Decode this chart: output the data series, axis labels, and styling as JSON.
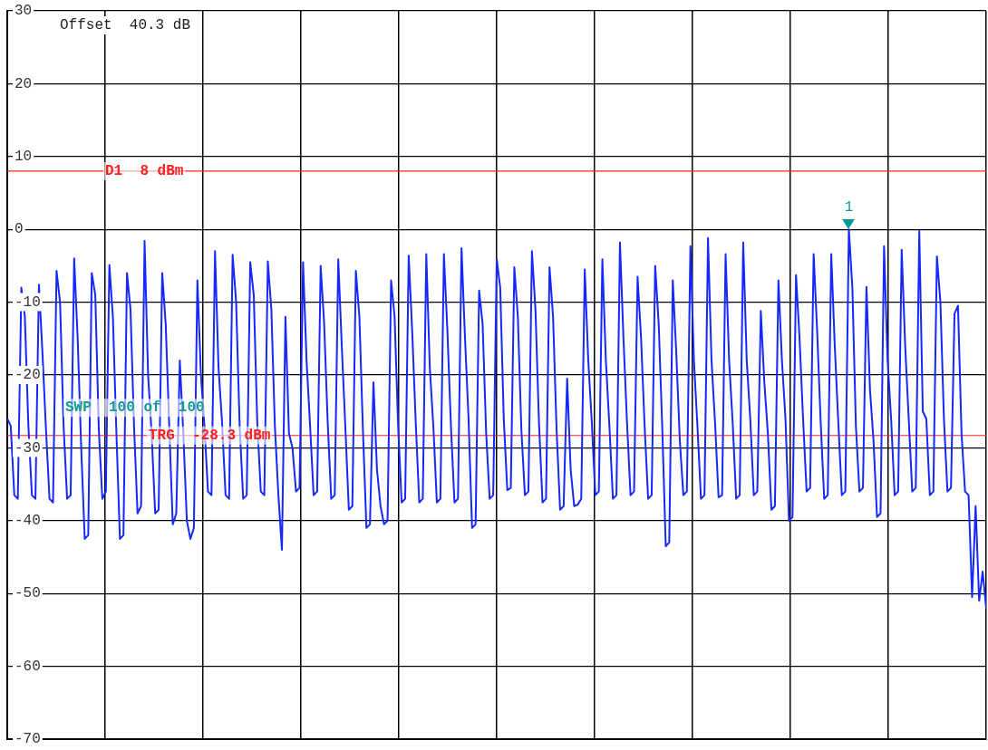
{
  "chart_data": {
    "type": "line",
    "annotations": [
      "Offset  40.3 dB",
      "SWP  100 of  100",
      {
        "text": "1",
        "y": 0
      }
    ],
    "categories": [
      null,
      null,
      null,
      null,
      null,
      null,
      null,
      null,
      null,
      null,
      null,
      null,
      null,
      null,
      null,
      null,
      null,
      null,
      null,
      null,
      null,
      null,
      null,
      null,
      null,
      null,
      null,
      null,
      null,
      null,
      null,
      null,
      null,
      null,
      null,
      null,
      null,
      null,
      null,
      null,
      null,
      null,
      null,
      null,
      null,
      null,
      null,
      null,
      null,
      null,
      null,
      null,
      null,
      null,
      null,
      null,
      null,
      null,
      null,
      null,
      null,
      null,
      null,
      null,
      null,
      null,
      null,
      null,
      null,
      null,
      null,
      null,
      null,
      null,
      null,
      null,
      null,
      null,
      null,
      null,
      null,
      null,
      null,
      null,
      null,
      null,
      null,
      null,
      null,
      null,
      null,
      null,
      null,
      null,
      null,
      null,
      null,
      null,
      null,
      null,
      null,
      null,
      null,
      null,
      null,
      null,
      null,
      null,
      null,
      null,
      null,
      null,
      null,
      null,
      null,
      null,
      null,
      null,
      null,
      null,
      null,
      null,
      null,
      null,
      null,
      null,
      null,
      null,
      null,
      null,
      null,
      null,
      null,
      null,
      null,
      null,
      null,
      null,
      null,
      null,
      null,
      null,
      null,
      null,
      null,
      null,
      null,
      null,
      null,
      null,
      null,
      null,
      null,
      null,
      null,
      null,
      null,
      null,
      null,
      null,
      null,
      null,
      null,
      null,
      null,
      null,
      null,
      null,
      null,
      null,
      null,
      null,
      null,
      null,
      null,
      null,
      null,
      null,
      null,
      null,
      null,
      null,
      null,
      null,
      null,
      null,
      null,
      null,
      null,
      null,
      null,
      null,
      null,
      null,
      null,
      null,
      null,
      null,
      null,
      null,
      null,
      null,
      null,
      null,
      null,
      null,
      null,
      null,
      null,
      null,
      null,
      null,
      null,
      null,
      null,
      null,
      null,
      null,
      null,
      null,
      null,
      null,
      null,
      null,
      null,
      null,
      null,
      null,
      null,
      null,
      null,
      null,
      null,
      null,
      null,
      null,
      null,
      null,
      null,
      null,
      null,
      null,
      null,
      null,
      null,
      null,
      null,
      null,
      null,
      null,
      null,
      null,
      null,
      null,
      null,
      null,
      null,
      null,
      null,
      null,
      null,
      null,
      null,
      null,
      null,
      null,
      null,
      null,
      null,
      null,
      null,
      null,
      null,
      null,
      null,
      null,
      null,
      null,
      null
    ],
    "series": [
      {
        "color": "#1428ff",
        "values": [
          -26,
          -27,
          -36.5,
          -37,
          -8,
          -12,
          -27,
          -36.5,
          -37,
          -7.6,
          -17,
          -27.5,
          -37,
          -37.5,
          -5.7,
          -10,
          -27,
          -37,
          -36.5,
          -4,
          -15,
          -30,
          -42.5,
          -42,
          -6,
          -9,
          -27.5,
          -37,
          -36,
          -4.9,
          -12,
          -28,
          -42.5,
          -42,
          -6,
          -11,
          -27,
          -39,
          -38,
          -1.6,
          -20,
          -28,
          -39,
          -38.5,
          -6,
          -13,
          -27,
          -40.5,
          -39,
          -18,
          -28,
          -40,
          -42.5,
          -41,
          -7,
          -20,
          -27,
          -36,
          -36.5,
          -3,
          -19,
          -26.5,
          -36.5,
          -37,
          -3.5,
          -10,
          -27,
          -37,
          -36.5,
          -4.5,
          -9,
          -26.5,
          -36,
          -36.5,
          -4.4,
          -11,
          -27,
          -36.5,
          -44,
          -12,
          -28,
          -30,
          -36,
          -35.5,
          -4.5,
          -18,
          -27,
          -36.5,
          -36,
          -5,
          -13,
          -26.5,
          -37,
          -36.5,
          -4.1,
          -16,
          -27,
          -38.5,
          -38,
          -5.7,
          -12,
          -27.5,
          -41,
          -40.5,
          -21,
          -33,
          -38,
          -40.5,
          -40,
          -7,
          -12,
          -27,
          -37.5,
          -37,
          -3.6,
          -14,
          -26.5,
          -37.5,
          -37,
          -3.4,
          -19,
          -27,
          -37.5,
          -37,
          -3.4,
          -14,
          -27,
          -37.5,
          -37,
          -2.6,
          -15,
          -26,
          -41,
          -40.5,
          -8.4,
          -13,
          -28,
          -37,
          -36.5,
          -4.1,
          -8,
          -26,
          -35.8,
          -35.5,
          -5.2,
          -12,
          -27.5,
          -36.5,
          -36,
          -3,
          -11,
          -26.5,
          -37.5,
          -37,
          -5.2,
          -12,
          -27.5,
          -38.5,
          -38,
          -20.5,
          -33,
          -38,
          -37.8,
          -37,
          -5.5,
          -18,
          -26.5,
          -36.5,
          -36,
          -4.1,
          -18,
          -27,
          -37,
          -36.5,
          -1.8,
          -15,
          -26.5,
          -36.5,
          -36,
          -6.5,
          -15,
          -27,
          -37,
          -36.5,
          -5,
          -13,
          -27,
          -43.5,
          -43,
          -7,
          -17,
          -29,
          -36.5,
          -36,
          -2.3,
          -18,
          -27,
          -37,
          -36.5,
          -1.2,
          -18,
          -26.5,
          -36.8,
          -36.5,
          -3.4,
          -18,
          -26.5,
          -37,
          -36.5,
          -1.8,
          -18,
          -26,
          -36.5,
          -36,
          -11.2,
          -21,
          -28,
          -38.5,
          -38,
          -7,
          -18,
          -26,
          -40,
          -39.5,
          -6.3,
          -15,
          -26,
          -36,
          -35.5,
          -3.4,
          -14,
          -26.5,
          -37,
          -36.5,
          -3.4,
          -16,
          -26.5,
          -36.5,
          -36,
          0,
          -8,
          -27,
          -36,
          -35.5,
          -7.9,
          -22,
          -29,
          -39.5,
          -39,
          -2.3,
          -18,
          -26,
          -36.5,
          -36,
          -2.8,
          -16,
          -26,
          -36,
          -35.5,
          -0.2,
          -25,
          -26,
          -36.5,
          -36,
          -3.7,
          -10,
          -26,
          -36,
          -35.5,
          -11.6,
          -10.5,
          -28,
          -36,
          -36.5,
          -50.5,
          -38,
          -51,
          -47,
          -52
        ]
      }
    ],
    "ylim": [
      -70,
      30
    ],
    "yticks": [
      30,
      20,
      10,
      0,
      -10,
      -20,
      -30,
      -40,
      -50,
      -60,
      -70
    ],
    "grid": true,
    "legend": false,
    "marker": "none",
    "line_style": "solid",
    "ref_lines": [
      {
        "axis": "y",
        "value": 8,
        "label": "D1  8 dBm",
        "color": "#ff2020"
      },
      {
        "axis": "y",
        "value": -28.3,
        "label": "TRG  -28.3 dBm",
        "color": "#ff2020"
      }
    ]
  }
}
